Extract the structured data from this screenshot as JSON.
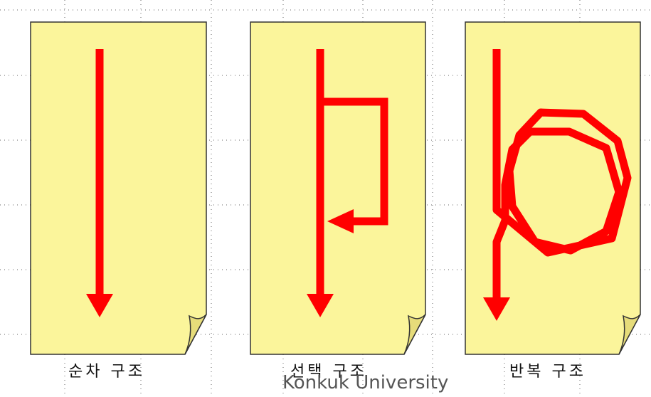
{
  "diagram": {
    "panels": [
      {
        "id": "sequence",
        "caption": "순차 구조"
      },
      {
        "id": "selection",
        "caption": "선택 구조"
      },
      {
        "id": "repetition",
        "caption": "반복 구조"
      }
    ]
  },
  "footer": "Konkuk University",
  "colors": {
    "page_fill": "#FBF59B",
    "page_stroke": "#333333",
    "curl_fill": "#E6DC7A",
    "arrow": "#FF0000",
    "grid_dots": "#666666"
  }
}
